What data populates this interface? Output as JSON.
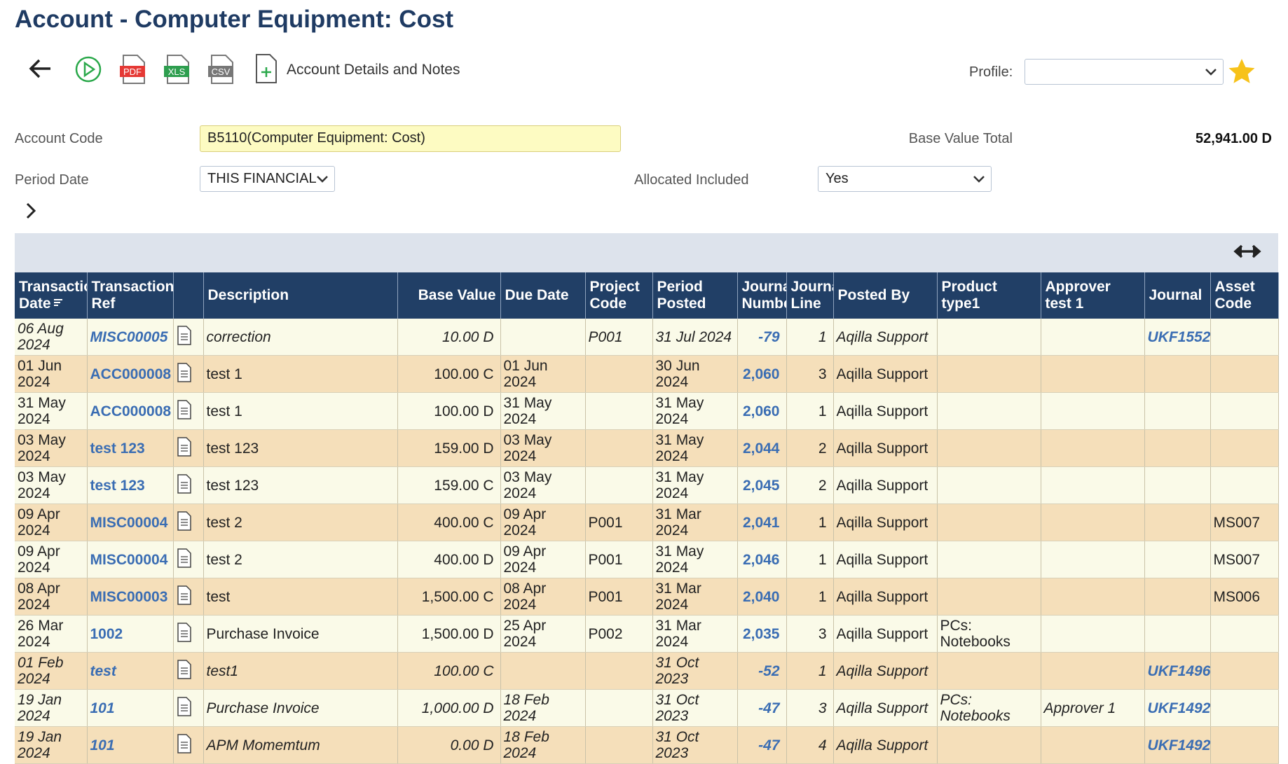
{
  "header": {
    "title": "Account - Computer Equipment: Cost"
  },
  "toolbar": {
    "pdf": "PDF",
    "xls": "XLS",
    "csv": "CSV",
    "account_details": "Account Details and Notes",
    "profile_label": "Profile:"
  },
  "filters": {
    "account_code_label": "Account Code",
    "account_code": "B5110(Computer Equipment: Cost)",
    "base_value_total_label": "Base Value Total",
    "base_value_total": "52,941.00 D",
    "period_date_label": "Period Date",
    "period_date": "THIS FINANCIAL",
    "allocated_label": "Allocated Included",
    "allocated": "Yes"
  },
  "table": {
    "columns": [
      "Transaction Date",
      "Transaction Ref",
      "Description",
      "Base Value",
      "Due Date",
      "Project Code",
      "Period Posted",
      "Journal Number",
      "Journal Line",
      "Posted By",
      "Product type1",
      "Approver test 1",
      "Journal",
      "Asset Code"
    ],
    "rows": [
      {
        "italic": true,
        "cells": [
          "06 Aug 2024",
          "MISC00005",
          "correction",
          "10.00 D",
          null,
          "P001",
          "31 Jul 2024",
          "-79",
          "1",
          "Aqilla Support",
          null,
          null,
          "UKF1552",
          null
        ]
      },
      {
        "italic": false,
        "cells": [
          "01 Jun 2024",
          "ACC000008",
          "test 1",
          "100.00 C",
          "01 Jun 2024",
          null,
          "30 Jun 2024",
          "2,060",
          "3",
          "Aqilla Support",
          null,
          null,
          null,
          null
        ]
      },
      {
        "italic": false,
        "cells": [
          "31 May 2024",
          "ACC000008",
          "test 1",
          "100.00 D",
          "31 May 2024",
          null,
          "31 May 2024",
          "2,060",
          "1",
          "Aqilla Support",
          null,
          null,
          null,
          null
        ]
      },
      {
        "italic": false,
        "cells": [
          "03 May 2024",
          "test 123",
          "test 123",
          "159.00 D",
          "03 May 2024",
          null,
          "31 May 2024",
          "2,044",
          "2",
          "Aqilla Support",
          null,
          null,
          null,
          null
        ]
      },
      {
        "italic": false,
        "cells": [
          "03 May 2024",
          "test 123",
          "test 123",
          "159.00 C",
          "03 May 2024",
          null,
          "31 May 2024",
          "2,045",
          "2",
          "Aqilla Support",
          null,
          null,
          null,
          null
        ]
      },
      {
        "italic": false,
        "cells": [
          "09 Apr 2024",
          "MISC00004",
          "test 2",
          "400.00 C",
          "09 Apr 2024",
          "P001",
          "31 Mar 2024",
          "2,041",
          "1",
          "Aqilla Support",
          null,
          null,
          null,
          "MS007"
        ]
      },
      {
        "italic": false,
        "cells": [
          "09 Apr 2024",
          "MISC00004",
          "test 2",
          "400.00 D",
          "09 Apr 2024",
          "P001",
          "31 May 2024",
          "2,046",
          "1",
          "Aqilla Support",
          null,
          null,
          null,
          "MS007"
        ]
      },
      {
        "italic": false,
        "cells": [
          "08 Apr 2024",
          "MISC00003",
          "test",
          "1,500.00 C",
          "08 Apr 2024",
          "P001",
          "31 Mar 2024",
          "2,040",
          "1",
          "Aqilla Support",
          null,
          null,
          null,
          "MS006"
        ]
      },
      {
        "italic": false,
        "cells": [
          "26 Mar 2024",
          "1002",
          "Purchase Invoice",
          "1,500.00 D",
          "25 Apr 2024",
          "P002",
          "31 Mar 2024",
          "2,035",
          "3",
          "Aqilla Support",
          "PCs: Notebooks",
          null,
          null,
          null
        ]
      },
      {
        "italic": true,
        "cells": [
          "01 Feb 2024",
          "test",
          "test1",
          "100.00 C",
          null,
          null,
          "31 Oct 2023",
          "-52",
          "1",
          "Aqilla Support",
          null,
          null,
          "UKF1496",
          null
        ]
      },
      {
        "italic": true,
        "cells": [
          "19 Jan 2024",
          "101",
          "Purchase Invoice",
          "1,000.00 D",
          "18 Feb 2024",
          null,
          "31 Oct 2023",
          "-47",
          "3",
          "Aqilla Support",
          "PCs: Notebooks",
          "Approver 1",
          "UKF1492",
          null
        ]
      },
      {
        "italic": true,
        "cells": [
          "19 Jan 2024",
          "101",
          "APM Momemtum",
          "0.00 D",
          "18 Feb 2024",
          null,
          "31 Oct 2023",
          "-47",
          "4",
          "Aqilla Support",
          null,
          null,
          "UKF1492",
          null
        ]
      }
    ]
  }
}
